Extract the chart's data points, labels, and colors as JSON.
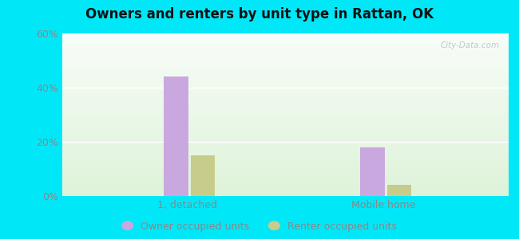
{
  "title": "Owners and renters by unit type in Rattan, OK",
  "categories": [
    "1, detached",
    "Mobile home"
  ],
  "owner_values": [
    44,
    18
  ],
  "renter_values": [
    15,
    4
  ],
  "owner_color": "#c9a8e0",
  "renter_color": "#c8cc8a",
  "ylim": [
    0,
    60
  ],
  "yticks": [
    0,
    20,
    40,
    60
  ],
  "ytick_labels": [
    "0%",
    "20%",
    "40%",
    "60%"
  ],
  "background_outer": "#00e8f8",
  "legend_owner": "Owner occupied units",
  "legend_renter": "Renter occupied units",
  "bar_width": 0.32,
  "group_positions": [
    0.28,
    0.72
  ],
  "watermark": "City-Data.com"
}
